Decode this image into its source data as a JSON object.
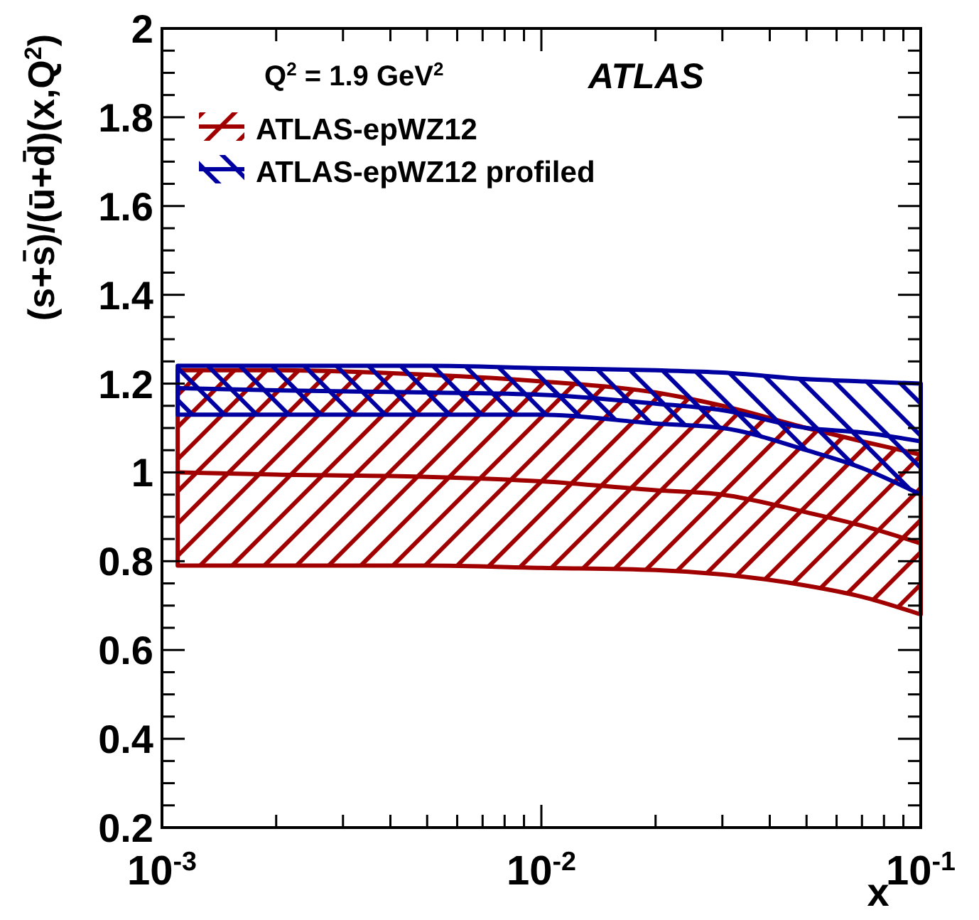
{
  "chart_data": {
    "type": "line",
    "xlabel": "x",
    "ylabel": "(s+s̄)/(ū+d̄)(x,Q$^{2}$)",
    "log": "x",
    "legend": "top left",
    "grid": false,
    "annotations": [
      "Q$^{2}$ = 1.9 GeV$^{2}$",
      "ATLAS"
    ],
    "xlim": [
      0.001,
      0.1
    ],
    "ylim": [
      0.2,
      2
    ],
    "xticks": [
      {
        "value": 0.001,
        "label": "10$^{-3}$"
      },
      {
        "value": 0.002,
        "label": null
      },
      {
        "value": 0.003,
        "label": null
      },
      {
        "value": 0.004,
        "label": null
      },
      {
        "value": 0.005,
        "label": null
      },
      {
        "value": 0.006,
        "label": null
      },
      {
        "value": 0.007,
        "label": null
      },
      {
        "value": 0.008,
        "label": null
      },
      {
        "value": 0.009,
        "label": null
      },
      {
        "value": 0.01,
        "label": "10$^{-2}$"
      },
      {
        "value": 0.02,
        "label": null
      },
      {
        "value": 0.03,
        "label": null
      },
      {
        "value": 0.04,
        "label": null
      },
      {
        "value": 0.05,
        "label": null
      },
      {
        "value": 0.06,
        "label": null
      },
      {
        "value": 0.07,
        "label": null
      },
      {
        "value": 0.08,
        "label": null
      },
      {
        "value": 0.09,
        "label": null
      },
      {
        "value": 0.1,
        "label": "10$^{-1}$"
      }
    ],
    "yticks": [
      {
        "value": 0.2,
        "label": "0.2"
      },
      {
        "value": 0.25,
        "label": null
      },
      {
        "value": 0.3,
        "label": null
      },
      {
        "value": 0.35,
        "label": null
      },
      {
        "value": 0.4,
        "label": "0.4"
      },
      {
        "value": 0.45,
        "label": null
      },
      {
        "value": 0.5,
        "label": null
      },
      {
        "value": 0.55,
        "label": null
      },
      {
        "value": 0.6,
        "label": "0.6"
      },
      {
        "value": 0.65,
        "label": null
      },
      {
        "value": 0.7,
        "label": null
      },
      {
        "value": 0.75,
        "label": null
      },
      {
        "value": 0.8,
        "label": "0.8"
      },
      {
        "value": 0.85,
        "label": null
      },
      {
        "value": 0.9,
        "label": null
      },
      {
        "value": 0.95,
        "label": null
      },
      {
        "value": 1,
        "label": "1"
      },
      {
        "value": 1.05,
        "label": null
      },
      {
        "value": 1.1,
        "label": null
      },
      {
        "value": 1.15,
        "label": null
      },
      {
        "value": 1.2,
        "label": "1.2"
      },
      {
        "value": 1.25,
        "label": null
      },
      {
        "value": 1.3,
        "label": null
      },
      {
        "value": 1.35,
        "label": null
      },
      {
        "value": 1.4,
        "label": "1.4"
      },
      {
        "value": 1.45,
        "label": null
      },
      {
        "value": 1.5,
        "label": null
      },
      {
        "value": 1.55,
        "label": null
      },
      {
        "value": 1.6,
        "label": "1.6"
      },
      {
        "value": 1.65,
        "label": null
      },
      {
        "value": 1.7,
        "label": null
      },
      {
        "value": 1.75,
        "label": null
      },
      {
        "value": 1.8,
        "label": "1.8"
      },
      {
        "value": 1.85,
        "label": null
      },
      {
        "value": 1.9,
        "label": null
      },
      {
        "value": 1.95,
        "label": null
      },
      {
        "value": 2,
        "label": "2"
      }
    ],
    "x": [
      0.0011,
      0.002,
      0.005,
      0.01,
      0.02,
      0.03,
      0.05,
      0.07,
      0.1
    ],
    "series": [
      {
        "name": "ATLAS-epWZ12",
        "color": "#a00000",
        "values": [
          1.0,
          0.995,
          0.99,
          0.98,
          0.96,
          0.95,
          0.91,
          0.88,
          0.84
        ],
        "upper": [
          1.23,
          1.23,
          1.22,
          1.205,
          1.18,
          1.15,
          1.1,
          1.07,
          1.04
        ],
        "lower": [
          0.79,
          0.79,
          0.79,
          0.785,
          0.78,
          0.77,
          0.745,
          0.72,
          0.68
        ]
      },
      {
        "name": "ATLAS-epWZ12 profiled",
        "color": "#0000a0",
        "values": [
          1.19,
          1.185,
          1.18,
          1.175,
          1.155,
          1.14,
          1.1,
          1.09,
          1.07
        ],
        "upper": [
          1.24,
          1.24,
          1.24,
          1.235,
          1.23,
          1.225,
          1.21,
          1.205,
          1.2
        ],
        "lower": [
          1.13,
          1.13,
          1.13,
          1.13,
          1.11,
          1.1,
          1.05,
          1.01,
          0.95
        ]
      }
    ]
  }
}
